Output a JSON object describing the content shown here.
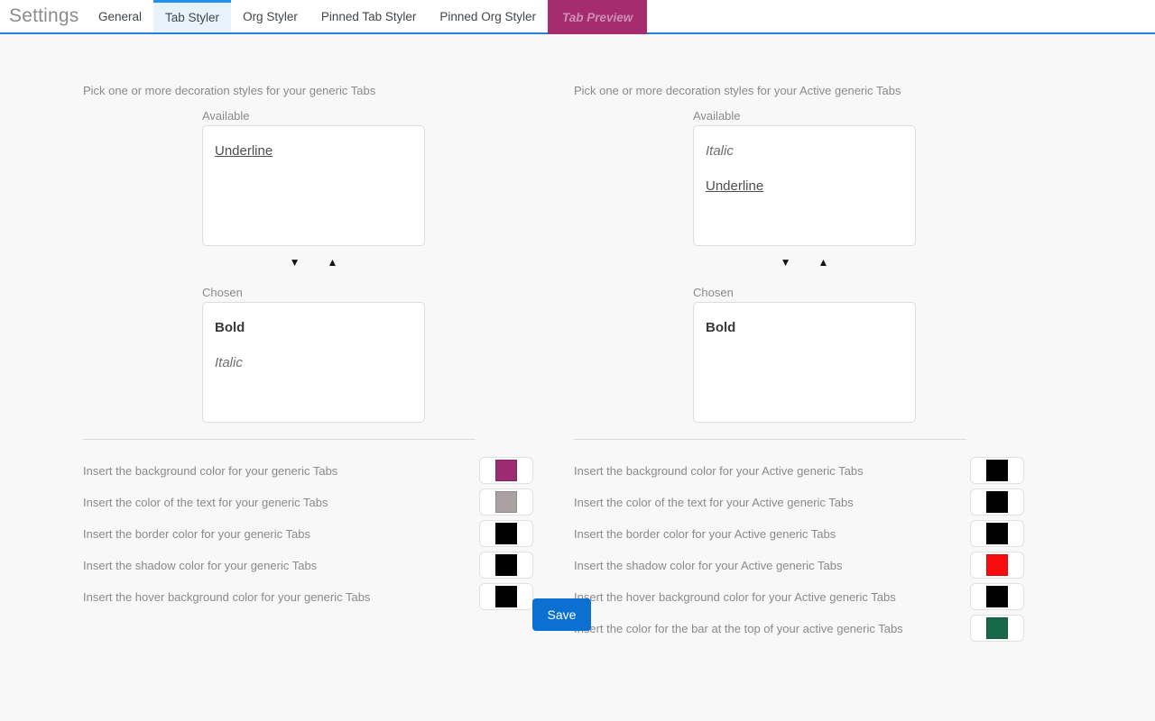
{
  "header": {
    "title": "Settings",
    "tabs": [
      {
        "label": "General",
        "state": "normal"
      },
      {
        "label": "Tab Styler",
        "state": "selected"
      },
      {
        "label": "Org Styler",
        "state": "normal"
      },
      {
        "label": "Pinned Tab Styler",
        "state": "normal"
      },
      {
        "label": "Pinned Org Styler",
        "state": "normal"
      },
      {
        "label": "Tab Preview",
        "state": "preview"
      }
    ]
  },
  "icons": {
    "move_down": "▼",
    "move_up": "▲"
  },
  "theme": {
    "header_underline": "#2183dc",
    "selected_tab_bg": "#e8f2fb",
    "selected_tab_border": "#2191e9",
    "preview_tab_bg": "#a62c6f",
    "preview_tab_text": "#cb90b3",
    "save_button_bg": "#0b70d1",
    "page_bg": "#f8f8f8"
  },
  "panels": [
    {
      "id": "generic-tabs",
      "instruction": "Pick one or more decoration styles for your generic Tabs",
      "available_label": "Available",
      "available_items": [
        {
          "label": "Underline",
          "style": "underline"
        }
      ],
      "chosen_label": "Chosen",
      "chosen_items": [
        {
          "label": "Bold",
          "style": "bold"
        },
        {
          "label": "Italic",
          "style": "italic"
        }
      ],
      "color_rows": [
        {
          "label": "Insert the background color for your generic Tabs",
          "color": "#9c2b71"
        },
        {
          "label": "Insert the color of the text for your generic Tabs",
          "color": "#aba1a2"
        },
        {
          "label": "Insert the border color for your generic Tabs",
          "color": "#000000"
        },
        {
          "label": "Insert the shadow color for your generic Tabs",
          "color": "#000000"
        },
        {
          "label": "Insert the hover background color for your generic Tabs",
          "color": "#000000"
        }
      ]
    },
    {
      "id": "active-generic-tabs",
      "instruction": "Pick one or more decoration styles for your Active generic Tabs",
      "available_label": "Available",
      "available_items": [
        {
          "label": "Italic",
          "style": "italic"
        },
        {
          "label": "Underline",
          "style": "underline"
        }
      ],
      "chosen_label": "Chosen",
      "chosen_items": [
        {
          "label": "Bold",
          "style": "bold"
        }
      ],
      "color_rows": [
        {
          "label": "Insert the background color for your Active generic Tabs",
          "color": "#000000"
        },
        {
          "label": "Insert the color of the text for your Active generic Tabs",
          "color": "#000000"
        },
        {
          "label": "Insert the border color for your Active generic Tabs",
          "color": "#000000"
        },
        {
          "label": "Insert the shadow color for your Active generic Tabs",
          "color": "#f70d0d"
        },
        {
          "label": "Insert the hover background color for your Active generic Tabs",
          "color": "#000000"
        },
        {
          "label": "Insert the color for the bar at the top of your active generic Tabs",
          "color": "#17694a"
        }
      ]
    }
  ],
  "save": {
    "label": "Save"
  }
}
